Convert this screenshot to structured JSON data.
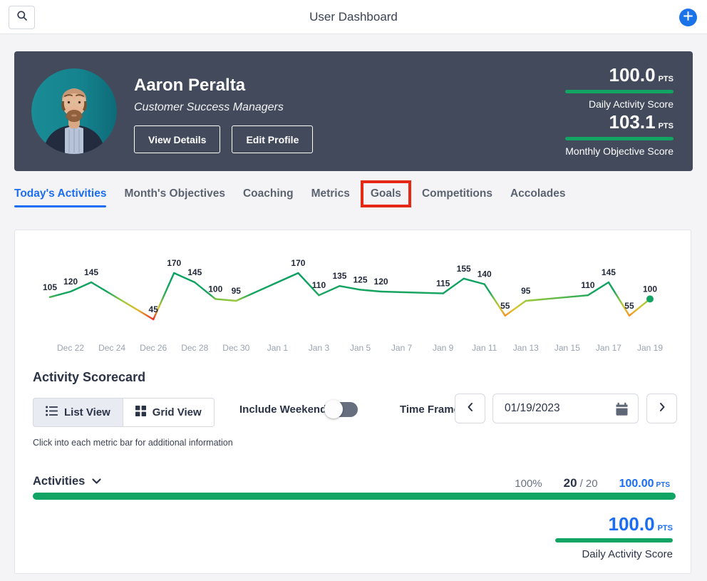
{
  "topbar": {
    "title": "User Dashboard"
  },
  "profile": {
    "name": "Aaron Peralta",
    "role": "Customer Success Managers",
    "view_details_label": "View Details",
    "edit_profile_label": "Edit Profile",
    "scores": [
      {
        "value": "100.0",
        "unit": "PTS",
        "label": "Daily Activity Score"
      },
      {
        "value": "103.1",
        "unit": "PTS",
        "label": "Monthly Objective Score"
      }
    ]
  },
  "tabs": {
    "items": [
      {
        "label": "Today's Activities",
        "active": true,
        "highlighted": false
      },
      {
        "label": "Month's Objectives",
        "active": false,
        "highlighted": false
      },
      {
        "label": "Coaching",
        "active": false,
        "highlighted": false
      },
      {
        "label": "Metrics",
        "active": false,
        "highlighted": false
      },
      {
        "label": "Goals",
        "active": false,
        "highlighted": true
      },
      {
        "label": "Competitions",
        "active": false,
        "highlighted": false
      },
      {
        "label": "Accolades",
        "active": false,
        "highlighted": false
      }
    ]
  },
  "chart_data": {
    "type": "line",
    "title": "",
    "xlabel": "",
    "ylabel": "",
    "x_unit": "day offset from Dec 21 (weekdays only, weekend gaps visible)",
    "x": [
      0,
      1,
      2,
      5,
      6,
      7,
      8,
      9,
      12,
      13,
      14,
      15,
      16,
      19,
      20,
      21,
      22,
      23,
      26,
      27,
      28,
      29
    ],
    "values": [
      105,
      120,
      145,
      45,
      170,
      145,
      100,
      95,
      170,
      110,
      135,
      125,
      120,
      115,
      155,
      140,
      55,
      95,
      110,
      145,
      55,
      100
    ],
    "point_labels_visible": true,
    "x_range": [
      0,
      29
    ],
    "y_range": [
      45,
      170
    ],
    "ticks": [
      {
        "x": 1,
        "label": "Dec 22"
      },
      {
        "x": 3,
        "label": "Dec 24"
      },
      {
        "x": 5,
        "label": "Dec 26"
      },
      {
        "x": 7,
        "label": "Dec 28"
      },
      {
        "x": 9,
        "label": "Dec 30"
      },
      {
        "x": 11,
        "label": "Jan 1"
      },
      {
        "x": 13,
        "label": "Jan 3"
      },
      {
        "x": 15,
        "label": "Jan 5"
      },
      {
        "x": 17,
        "label": "Jan 7"
      },
      {
        "x": 19,
        "label": "Jan 9"
      },
      {
        "x": 21,
        "label": "Jan 11"
      },
      {
        "x": 23,
        "label": "Jan 13"
      },
      {
        "x": 25,
        "label": "Jan 15"
      },
      {
        "x": 27,
        "label": "Jan 17"
      },
      {
        "x": 29,
        "label": "Jan 19"
      }
    ],
    "color_scale": [
      [
        45,
        "#e92d20"
      ],
      [
        55,
        "#f59120"
      ],
      [
        75,
        "#ddc32b"
      ],
      [
        95,
        "#9cc93a"
      ],
      [
        103,
        "#5cb747"
      ],
      [
        112,
        "#15a45f"
      ],
      [
        170,
        "#0aa061"
      ]
    ],
    "end_point_marker": true,
    "grid": false,
    "legend": false
  },
  "scorecard": {
    "title": "Activity Scorecard",
    "list_view_label": "List View",
    "grid_view_label": "Grid View",
    "selected_view": "List View",
    "include_weekends_label": "Include Weekends",
    "include_weekends_on": false,
    "time_frame_label": "Time Frame",
    "date_value": "01/19/2023",
    "hint": "Click into each metric bar for additional information",
    "metric": {
      "name": "Activities",
      "percent": "100%",
      "completed": "20",
      "total": "/ 20",
      "points": "100.00",
      "unit": "PTS",
      "progress_percent": 100
    },
    "summary": {
      "value": "100.0",
      "unit": "PTS",
      "label": "Daily Activity Score"
    }
  },
  "colors": {
    "accent_blue": "#1b6ef3",
    "plus_button_blue": "#1a73e8",
    "green": "#12a463",
    "dark_card": "#424a5c",
    "annotation_red": "#e62817"
  }
}
